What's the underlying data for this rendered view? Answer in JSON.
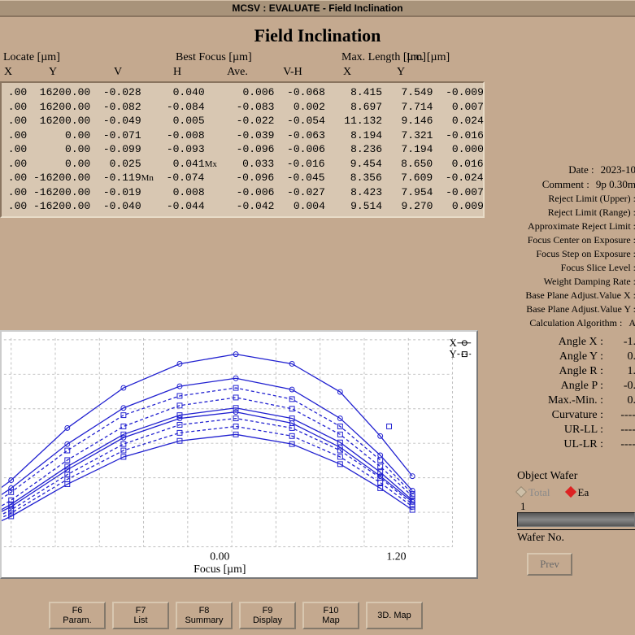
{
  "window_title": "MCSV : EVALUATE - Field Inclination",
  "page_title": "Field Inclination",
  "headers": {
    "locate": "Locate [µm]",
    "best_focus": "Best Focus [µm]",
    "max_length": "Max. Length [µm]",
    "inc": "Inc. [µm]",
    "cols": [
      "X",
      "Y",
      "V",
      "H",
      "Ave.",
      "V-H",
      "X",
      "Y"
    ]
  },
  "rows": [
    {
      "x": ".00",
      "y": "16200.00",
      "v": "-0.028",
      "h": "0.040",
      "ave": "0.006",
      "vh": "-0.068",
      "mx": "8.415",
      "my": "7.549",
      "inc": "-0.009",
      "suffix": ""
    },
    {
      "x": ".00",
      "y": "16200.00",
      "v": "-0.082",
      "h": "-0.084",
      "ave": "-0.083",
      "vh": "0.002",
      "mx": "8.697",
      "my": "7.714",
      "inc": "0.007",
      "suffix": ""
    },
    {
      "x": ".00",
      "y": "16200.00",
      "v": "-0.049",
      "h": "0.005",
      "ave": "-0.022",
      "vh": "-0.054",
      "mx": "11.132",
      "my": "9.146",
      "inc": "0.024",
      "suffix": ""
    },
    {
      "x": ".00",
      "y": "0.00",
      "v": "-0.071",
      "h": "-0.008",
      "ave": "-0.039",
      "vh": "-0.063",
      "mx": "8.194",
      "my": "7.321",
      "inc": "-0.016",
      "suffix": ""
    },
    {
      "x": ".00",
      "y": "0.00",
      "v": "-0.099",
      "h": "-0.093",
      "ave": "-0.096",
      "vh": "-0.006",
      "mx": "8.236",
      "my": "7.194",
      "inc": "0.000",
      "suffix": ""
    },
    {
      "x": ".00",
      "y": "0.00",
      "v": "0.025",
      "h": "0.041",
      "ave": "0.033",
      "vh": "-0.016",
      "mx": "9.454",
      "my": "8.650",
      "inc": "0.016",
      "suffix": "Mx"
    },
    {
      "x": ".00",
      "y": "-16200.00",
      "v": "-0.119",
      "h": "-0.074",
      "ave": "-0.096",
      "vh": "-0.045",
      "mx": "8.356",
      "my": "7.609",
      "inc": "-0.024",
      "suffix": "Mn"
    },
    {
      "x": ".00",
      "y": "-16200.00",
      "v": "-0.019",
      "h": "0.008",
      "ave": "-0.006",
      "vh": "-0.027",
      "mx": "8.423",
      "my": "7.954",
      "inc": "-0.007",
      "suffix": ""
    },
    {
      "x": ".00",
      "y": "-16200.00",
      "v": "-0.040",
      "h": "-0.044",
      "ave": "-0.042",
      "vh": "0.004",
      "mx": "9.514",
      "my": "9.270",
      "inc": "0.009",
      "suffix": ""
    }
  ],
  "meta": {
    "date_label": "Date :",
    "date_val": "2023-10",
    "comment_label": "Comment :",
    "comment_val": "9p 0.30m",
    "lines": [
      "Reject Limit (Upper) :",
      "Reject Limit (Range) :",
      "Approximate Reject Limit :",
      "Focus Center on Exposure :",
      "Focus Step on Exposure :",
      "Focus Slice Level :",
      "Weight Damping Rate :",
      "Base Plane Adjust.Value X :",
      "Base Plane Adjust.Value Y :"
    ],
    "calc_label": "Calculation Algorithm :",
    "calc_val": "A"
  },
  "angles": [
    {
      "label": "Angle X :",
      "val": "-1."
    },
    {
      "label": "Angle Y :",
      "val": "0."
    },
    {
      "label": "Angle R :",
      "val": "1."
    },
    {
      "label": "Angle P :",
      "val": "-0."
    },
    {
      "label": "Max.-Min. :",
      "val": "0."
    },
    {
      "label": "Curvature :",
      "val": "----"
    },
    {
      "label": "UR-LL :",
      "val": "----"
    },
    {
      "label": "UL-LR :",
      "val": "----"
    }
  ],
  "chart": {
    "xlabel": "Focus [µm]",
    "xticks": [
      "0.00",
      "1.20"
    ],
    "xtick_pos": [
      270,
      490
    ],
    "legend": [
      {
        "label": "X",
        "marker": "circle"
      },
      {
        "label": "Y",
        "marker": "square"
      }
    ],
    "grid_color": "#bfbfbf",
    "line_color": "#2020d0",
    "series": [
      [
        [
          -50,
          230
        ],
        [
          10,
          185
        ],
        [
          80,
          120
        ],
        [
          150,
          70
        ],
        [
          220,
          40
        ],
        [
          290,
          28
        ],
        [
          360,
          40
        ],
        [
          420,
          75
        ],
        [
          470,
          130
        ],
        [
          510,
          180
        ]
      ],
      [
        [
          -50,
          245
        ],
        [
          10,
          210
        ],
        [
          80,
          160
        ],
        [
          150,
          118
        ],
        [
          220,
          92
        ],
        [
          290,
          82
        ],
        [
          360,
          96
        ],
        [
          420,
          128
        ],
        [
          470,
          168
        ],
        [
          510,
          205
        ]
      ],
      [
        [
          -50,
          248
        ],
        [
          10,
          215
        ],
        [
          80,
          168
        ],
        [
          150,
          128
        ],
        [
          220,
          104
        ],
        [
          290,
          95
        ],
        [
          360,
          108
        ],
        [
          420,
          138
        ],
        [
          470,
          175
        ],
        [
          510,
          210
        ]
      ],
      [
        [
          -50,
          252
        ],
        [
          10,
          222
        ],
        [
          80,
          178
        ],
        [
          150,
          140
        ],
        [
          220,
          116
        ],
        [
          290,
          108
        ],
        [
          360,
          120
        ],
        [
          420,
          148
        ],
        [
          470,
          182
        ],
        [
          510,
          215
        ]
      ],
      [
        [
          -50,
          248
        ],
        [
          10,
          218
        ],
        [
          80,
          172
        ],
        [
          150,
          132
        ],
        [
          220,
          108
        ],
        [
          290,
          100
        ],
        [
          360,
          114
        ],
        [
          420,
          144
        ],
        [
          470,
          180
        ],
        [
          510,
          212
        ]
      ],
      [
        [
          -50,
          255
        ],
        [
          10,
          226
        ],
        [
          80,
          184
        ],
        [
          150,
          148
        ],
        [
          220,
          126
        ],
        [
          290,
          118
        ],
        [
          360,
          130
        ],
        [
          420,
          156
        ],
        [
          470,
          188
        ],
        [
          510,
          218
        ]
      ],
      [
        [
          -50,
          258
        ],
        [
          10,
          230
        ],
        [
          80,
          190
        ],
        [
          150,
          156
        ],
        [
          220,
          136
        ],
        [
          290,
          128
        ],
        [
          360,
          140
        ],
        [
          420,
          165
        ],
        [
          470,
          195
        ],
        [
          510,
          222
        ]
      ],
      [
        [
          -50,
          235
        ],
        [
          10,
          195
        ],
        [
          80,
          140
        ],
        [
          150,
          95
        ],
        [
          220,
          68
        ],
        [
          290,
          58
        ],
        [
          360,
          72
        ],
        [
          420,
          108
        ],
        [
          470,
          154
        ],
        [
          510,
          198
        ]
      ],
      [
        [
          -50,
          240
        ],
        [
          10,
          200
        ],
        [
          80,
          148
        ],
        [
          150,
          104
        ],
        [
          220,
          80
        ],
        [
          290,
          70
        ],
        [
          360,
          84
        ],
        [
          420,
          118
        ],
        [
          470,
          160
        ],
        [
          510,
          202
        ]
      ]
    ],
    "markers": [
      "circle",
      "square",
      "square",
      "square",
      "circle",
      "square",
      "square",
      "circle",
      "square"
    ],
    "dashes": [
      false,
      true,
      false,
      true,
      false,
      true,
      false,
      false,
      true
    ]
  },
  "object_wafer": {
    "title": "Object Wafer",
    "total": "Total",
    "each": "Ea",
    "num": "1",
    "label": "Wafer No.",
    "prev": "Prev"
  },
  "fkeys": [
    {
      "k": "F6",
      "label": "Param."
    },
    {
      "k": "F7",
      "label": "List"
    },
    {
      "k": "F8",
      "label": "Summary"
    },
    {
      "k": "F9",
      "label": "Display"
    },
    {
      "k": "F10",
      "label": "Map"
    },
    {
      "k": "",
      "label": "3D. Map"
    }
  ]
}
